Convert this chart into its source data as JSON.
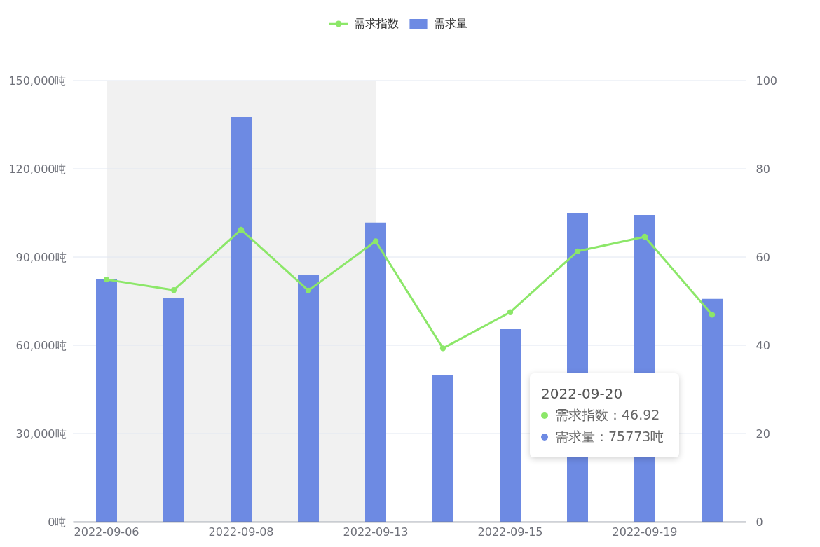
{
  "chart_data": {
    "type": "bar",
    "categories": [
      "2022-09-06",
      null,
      "2022-09-08",
      null,
      "2022-09-13",
      null,
      "2022-09-15",
      null,
      "2022-09-19",
      null
    ],
    "series": [
      {
        "name": "需求指数",
        "type": "line",
        "axis": "y2",
        "color": "#8ce769",
        "values": [
          54.9,
          52.5,
          66.2,
          52.4,
          63.6,
          39.3,
          47.5,
          61.3,
          64.6,
          46.92
        ]
      },
      {
        "name": "需求量",
        "color": "#6d8ae3",
        "values": [
          82600,
          76200,
          137600,
          84000,
          101700,
          49800,
          65500,
          105000,
          104300,
          75773
        ]
      }
    ],
    "ylim": [
      0,
      150000
    ],
    "yticks": [
      {
        "value": 0,
        "label": "0吨"
      },
      {
        "value": 30000,
        "label": "30,000吨"
      },
      {
        "value": 60000,
        "label": "60,000吨"
      },
      {
        "value": 90000,
        "label": "90,000吨"
      },
      {
        "value": 120000,
        "label": "120,000吨"
      },
      {
        "value": 150000,
        "label": "150,000吨"
      }
    ],
    "y2lim": [
      0,
      100
    ],
    "y2ticks": [
      0,
      20,
      40,
      60,
      80,
      100
    ],
    "grid": "y",
    "legend": "top",
    "marker": "circle",
    "line_style": "solid",
    "bands": [
      {
        "axis": "x",
        "from": "2022-09-06",
        "to": "2022-09-13",
        "color": "#f1f1f1"
      }
    ],
    "annotations": [
      "2022-09-20",
      "需求指数：46.92",
      "需求量：75773吨"
    ]
  }
}
